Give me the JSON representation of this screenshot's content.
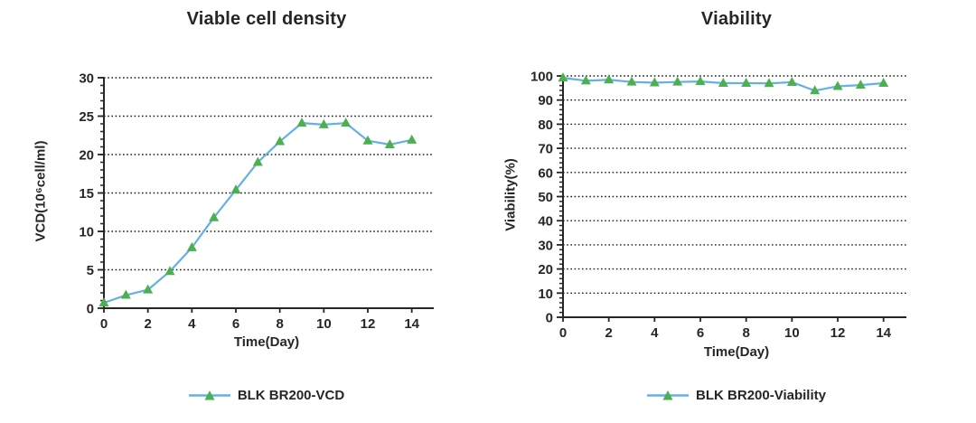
{
  "background": "#ffffff",
  "chart_data": [
    {
      "type": "line",
      "title": "Viable cell density",
      "xlabel": "Time(Day)",
      "ylabel": "VCD(10⁶cell/ml)",
      "legend_label": "BLK BR200-VCD",
      "legend_position": "bottom",
      "grid": "horizontal-dotted",
      "x": [
        0,
        1,
        2,
        3,
        4,
        5,
        6,
        7,
        8,
        9,
        10,
        11,
        12,
        13,
        14
      ],
      "series": [
        {
          "name": "BLK BR200-VCD",
          "values": [
            0.7,
            1.7,
            2.4,
            4.8,
            7.9,
            11.8,
            15.4,
            19.0,
            21.7,
            24.1,
            23.9,
            24.1,
            21.8,
            21.3,
            21.9
          ]
        }
      ],
      "xlim": [
        0,
        15
      ],
      "ylim": [
        0,
        30
      ],
      "x_ticks": [
        0,
        2,
        4,
        6,
        8,
        10,
        12,
        14
      ],
      "y_ticks": [
        0,
        5,
        10,
        15,
        20,
        25,
        30
      ],
      "y_minor_step": 1,
      "line_color": "#66AFE3",
      "marker": "triangle",
      "marker_color": "#4CAF50",
      "grid_color": "#1a1a1a",
      "axis_color": "#262626"
    },
    {
      "type": "line",
      "title": "Viability",
      "xlabel": "Time(Day)",
      "ylabel": "Viability(%)",
      "legend_label": "BLK BR200-Viability",
      "legend_position": "bottom",
      "grid": "horizontal-dotted",
      "x": [
        0,
        1,
        2,
        3,
        4,
        5,
        6,
        7,
        8,
        9,
        10,
        11,
        12,
        13,
        14
      ],
      "series": [
        {
          "name": "BLK BR200-Viability",
          "values": [
            99.2,
            98.0,
            98.4,
            97.5,
            97.2,
            97.5,
            97.7,
            97.0,
            97.0,
            96.9,
            97.4,
            93.9,
            95.7,
            96.2,
            97.0
          ]
        }
      ],
      "xlim": [
        0,
        15
      ],
      "ylim": [
        0,
        100
      ],
      "x_ticks": [
        0,
        2,
        4,
        6,
        8,
        10,
        12,
        14
      ],
      "y_ticks": [
        0,
        10,
        20,
        30,
        40,
        50,
        60,
        70,
        80,
        90,
        100
      ],
      "y_minor_step": 2,
      "line_color": "#66AFE3",
      "marker": "triangle",
      "marker_color": "#4CAF50",
      "grid_color": "#1a1a1a",
      "axis_color": "#262626"
    }
  ]
}
